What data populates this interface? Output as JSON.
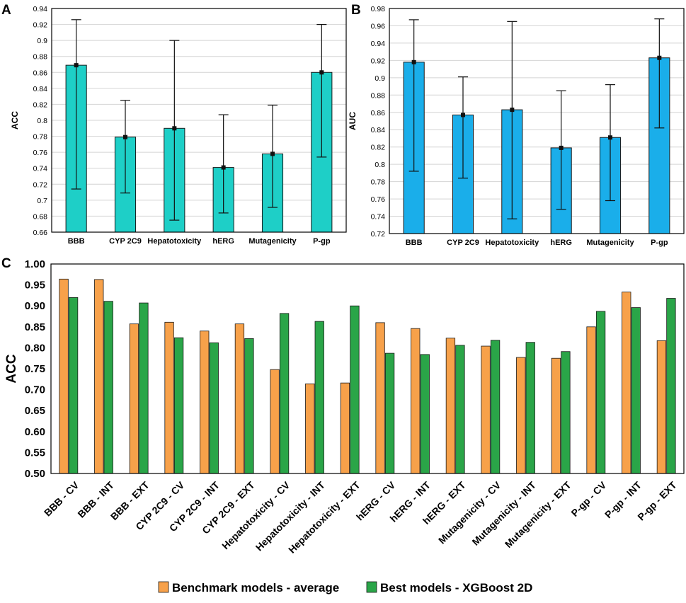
{
  "figure": {
    "colors": {
      "panel_a_bar": "#1ecfc7",
      "panel_b_bar": "#1aaeea",
      "benchmark": "#f7a14a",
      "best": "#2aa548",
      "grid": "#d4d4d4",
      "axis": "#000000"
    }
  },
  "chart_data": [
    {
      "panel": "A",
      "type": "bar",
      "title": "",
      "xlabel": "",
      "ylabel": "ACC",
      "ylim": [
        0.66,
        0.94
      ],
      "yticks": [
        0.66,
        0.68,
        0.7,
        0.72,
        0.74,
        0.76,
        0.78,
        0.8,
        0.82,
        0.84,
        0.86,
        0.88,
        0.9,
        0.92,
        0.94
      ],
      "ytick_labels": [
        "0.66",
        "0.68",
        "0.7",
        "0.72",
        "0.74",
        "0.76",
        "0.78",
        "0.8",
        "0.82",
        "0.84",
        "0.86",
        "0.88",
        "0.9",
        "0.92",
        "0.94"
      ],
      "grid": true,
      "categories": [
        "BBB",
        "CYP 2C9",
        "Hepatotoxicity",
        "hERG",
        "Mutagenicity",
        "P-gp"
      ],
      "values": [
        0.869,
        0.779,
        0.79,
        0.741,
        0.758,
        0.86
      ],
      "error_low": [
        0.714,
        0.709,
        0.675,
        0.684,
        0.691,
        0.754
      ],
      "error_high": [
        0.926,
        0.825,
        0.9,
        0.807,
        0.819,
        0.92
      ]
    },
    {
      "panel": "B",
      "type": "bar",
      "title": "",
      "xlabel": "",
      "ylabel": "AUC",
      "ylim": [
        0.72,
        0.98
      ],
      "yticks": [
        0.72,
        0.74,
        0.76,
        0.78,
        0.8,
        0.82,
        0.84,
        0.86,
        0.88,
        0.9,
        0.92,
        0.94,
        0.96,
        0.98
      ],
      "ytick_labels": [
        "0.72",
        "0.74",
        "0.76",
        "0.78",
        "0.8",
        "0.82",
        "0.84",
        "0.86",
        "0.88",
        "0.9",
        "0.92",
        "0.94",
        "0.96",
        "0.98"
      ],
      "grid": true,
      "categories": [
        "BBB",
        "CYP 2C9",
        "Hepatotoxicity",
        "hERG",
        "Mutagenicity",
        "P-gp"
      ],
      "values": [
        0.918,
        0.857,
        0.863,
        0.819,
        0.831,
        0.923
      ],
      "error_low": [
        0.792,
        0.784,
        0.737,
        0.748,
        0.758,
        0.842
      ],
      "error_high": [
        0.967,
        0.901,
        0.965,
        0.885,
        0.892,
        0.968
      ]
    },
    {
      "panel": "C",
      "type": "bar",
      "title": "",
      "xlabel": "",
      "ylabel": "ACC",
      "ylim": [
        0.5,
        1.0
      ],
      "yticks": [
        0.5,
        0.55,
        0.6,
        0.65,
        0.7,
        0.75,
        0.8,
        0.85,
        0.9,
        0.95,
        1.0
      ],
      "ytick_labels": [
        "0.50",
        "0.55",
        "0.60",
        "0.65",
        "0.70",
        "0.75",
        "0.80",
        "0.85",
        "0.90",
        "0.95",
        "1.00"
      ],
      "grid": false,
      "legend_position": "bottom",
      "categories": [
        "BBB - CV",
        "BBB - INT",
        "BBB - EXT",
        "CYP 2C9 - CV",
        "CYP 2C9 - INT",
        "CYP 2C9 - EXT",
        "Hepatotoxicity - CV",
        "Hepatotoxicity - INT",
        "Hepatotoxicity - EXT",
        "hERG - CV",
        "hERG - INT",
        "hERG - EXT",
        "Mutagenicity - CV",
        "Mutagenicity - INT",
        "Mutagenicity - EXT",
        "P-gp - CV",
        "P-gp - INT",
        "P-gp - EXT"
      ],
      "series": [
        {
          "name": "Benchmark models - average",
          "values": [
            0.964,
            0.963,
            0.857,
            0.861,
            0.84,
            0.857,
            0.748,
            0.714,
            0.716,
            0.86,
            0.846,
            0.823,
            0.804,
            0.777,
            0.775,
            0.85,
            0.933,
            0.817
          ]
        },
        {
          "name": "Best models - XGBoost 2D",
          "values": [
            0.92,
            0.911,
            0.907,
            0.824,
            0.812,
            0.822,
            0.882,
            0.863,
            0.9,
            0.787,
            0.784,
            0.806,
            0.818,
            0.813,
            0.791,
            0.887,
            0.896,
            0.918
          ]
        }
      ]
    }
  ]
}
